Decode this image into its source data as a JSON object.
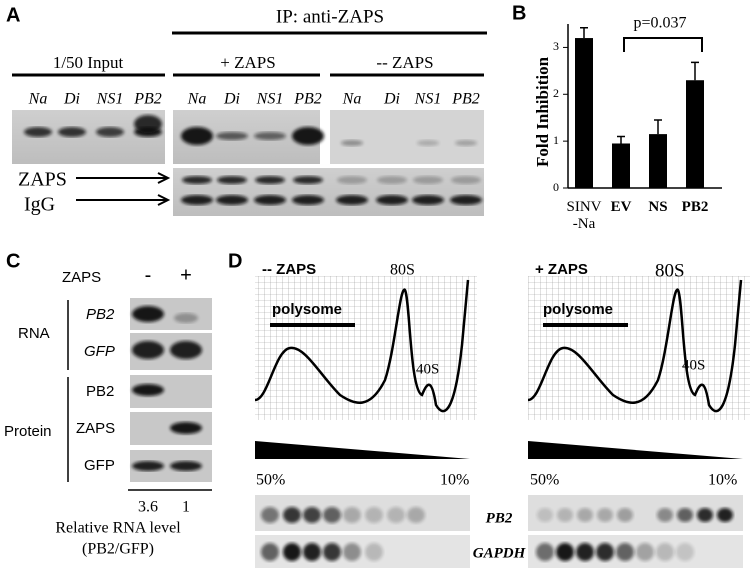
{
  "panels": {
    "A": {
      "label": "A",
      "ip_header": "IP: anti-ZAPS",
      "groups": [
        "1/50 Input",
        "+ ZAPS",
        "-- ZAPS"
      ],
      "lanes": [
        "Na",
        "Di",
        "NS1",
        "PB2"
      ],
      "markers": [
        "ZAPS",
        "IgG"
      ]
    },
    "C": {
      "label": "C",
      "zaps_label": "ZAPS",
      "conditions": [
        "-",
        "+"
      ],
      "rna_label": "RNA",
      "rna_rows": [
        "PB2",
        "GFP"
      ],
      "protein_label": "Protein",
      "protein_rows": [
        "PB2",
        "ZAPS",
        "GFP"
      ],
      "relative_levels": [
        3.6,
        1
      ],
      "caption": [
        "Relative  RNA level",
        "(PB2/GFP)"
      ]
    },
    "D": {
      "label": "D",
      "profiles": [
        {
          "condition": "-- ZAPS",
          "peak_80s": "80S",
          "peak_40s": "40S",
          "polysome": "polysome"
        },
        {
          "condition": "+ ZAPS",
          "peak_80s": "80S",
          "peak_40s": "40S",
          "polysome": "polysome"
        }
      ],
      "gradient": [
        "50%",
        "10%"
      ],
      "genes": [
        "PB2",
        "GAPDH"
      ]
    }
  },
  "chart_data": {
    "type": "bar",
    "label": "B",
    "y_label": "Fold  Inhibition",
    "categories": [
      "SINV\n-Na",
      "EV",
      "NS",
      "PB2"
    ],
    "values": [
      3.2,
      0.95,
      1.15,
      2.3
    ],
    "errors": [
      0.22,
      0.15,
      0.3,
      0.38
    ],
    "color": "#000000",
    "ylim": [
      0,
      3.5
    ],
    "yticks": [
      0,
      1,
      2,
      3
    ],
    "annotation": "p=0.037"
  }
}
